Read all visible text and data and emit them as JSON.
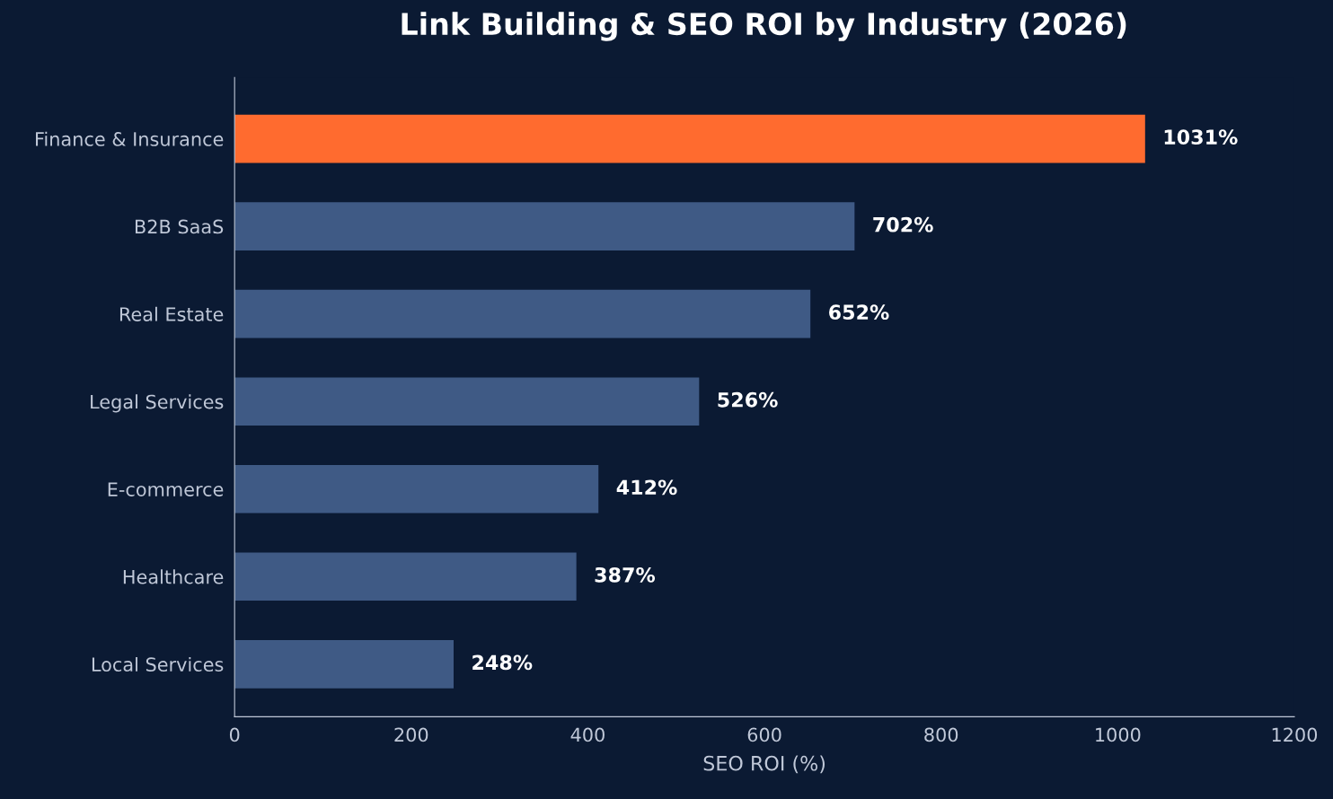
{
  "chart_data": {
    "type": "bar",
    "orientation": "horizontal",
    "title": "Link Building & SEO ROI by Industry (2026)",
    "xlabel": "SEO ROI (%)",
    "categories": [
      "Finance & Insurance",
      "B2B SaaS",
      "Real Estate",
      "Legal Services",
      "E-commerce",
      "Healthcare",
      "Local Services"
    ],
    "values": [
      1031,
      702,
      652,
      526,
      412,
      387,
      248
    ],
    "colors": [
      "#ff6b2f",
      "#3f5a85",
      "#3f5a85",
      "#3f5a85",
      "#3f5a85",
      "#3f5a85",
      "#3f5a85"
    ],
    "value_labels": [
      "1031%",
      "702%",
      "652%",
      "526%",
      "412%",
      "387%",
      "248%"
    ],
    "xlim": [
      0,
      1200
    ],
    "xticks": [
      0,
      200,
      400,
      600,
      800,
      1000,
      1200
    ],
    "grid": false
  }
}
